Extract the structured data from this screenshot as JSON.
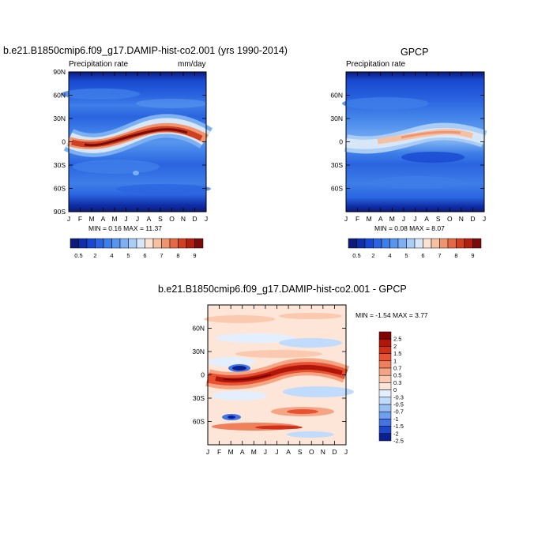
{
  "panel1": {
    "title": "b.e21.B1850cmip6.f09_g17.DAMIP-hist-co2.001 (yrs 1990-2014)",
    "left_label": "Precipitation rate",
    "right_label": "mm/day",
    "minmax": "MIN =   0.16 MAX =   11.37"
  },
  "panel2": {
    "title": "GPCP",
    "left_label": "Precipitation rate",
    "minmax": "MIN =   0.08 MAX =   8.07"
  },
  "panel3": {
    "title": "b.e21.B1850cmip6.f09_g17.DAMIP-hist-co2.001 - GPCP",
    "minmax": "MIN =  -1.54 MAX =    3.77"
  },
  "chart_data": [
    {
      "type": "heatmap",
      "title": "b.e21.B1850cmip6.f09_g17.DAMIP-hist-co2.001 (yrs 1990-2014)",
      "field": "Precipitation rate",
      "units": "mm/day",
      "x_ticks": [
        "J",
        "F",
        "M",
        "A",
        "M",
        "J",
        "J",
        "A",
        "S",
        "O",
        "N",
        "D",
        "J"
      ],
      "y_ticks": [
        "90N",
        "60N",
        "30N",
        "0",
        "30S",
        "60S",
        "90S"
      ],
      "min": 0.16,
      "max": 11.37,
      "colorbar_labels": [
        "0.5",
        "2",
        "4",
        "5",
        "6",
        "7",
        "8",
        "9"
      ],
      "itcz_peak_by_month": [
        {
          "x": "J",
          "lat": -5,
          "value": 10
        },
        {
          "x": "M",
          "lat": -4,
          "value": 11
        },
        {
          "x": "J",
          "lat": 7,
          "value": 10
        },
        {
          "x": "A",
          "lat": 9,
          "value": 11.37
        },
        {
          "x": "D",
          "lat": -3,
          "value": 9
        }
      ]
    },
    {
      "type": "heatmap",
      "title": "GPCP",
      "field": "Precipitation rate",
      "x_ticks": [
        "J",
        "F",
        "M",
        "A",
        "M",
        "J",
        "J",
        "A",
        "S",
        "O",
        "N",
        "D",
        "J"
      ],
      "y_ticks": [
        "60N",
        "30N",
        "0",
        "30S",
        "60S"
      ],
      "min": 0.08,
      "max": 8.07,
      "colorbar_labels": [
        "0.5",
        "2",
        "4",
        "5",
        "6",
        "7",
        "8",
        "9"
      ],
      "itcz_peak_by_month": [
        {
          "x": "J",
          "lat": -3,
          "value": 5
        },
        {
          "x": "A",
          "lat": 8,
          "value": 8
        },
        {
          "x": "D",
          "lat": -2,
          "value": 5
        }
      ]
    },
    {
      "type": "heatmap",
      "title": "b.e21.B1850cmip6.f09_g17.DAMIP-hist-co2.001 - GPCP",
      "x_ticks": [
        "J",
        "F",
        "M",
        "A",
        "M",
        "J",
        "J",
        "A",
        "S",
        "O",
        "N",
        "D",
        "J"
      ],
      "y_ticks": [
        "60N",
        "30N",
        "0",
        "30S",
        "60S"
      ],
      "min": -1.54,
      "max": 3.77,
      "colorbar_labels": [
        "2.5",
        "2",
        "1.5",
        "1",
        "0.7",
        "0.5",
        "0.3",
        "0",
        "-0.3",
        "-0.5",
        "-0.7",
        "-1",
        "-1.5",
        "-2",
        "-2.5"
      ]
    }
  ],
  "colors": {
    "seq": [
      "#0c1a7a",
      "#0e2fa8",
      "#1848cf",
      "#2a64e0",
      "#3e7ee8",
      "#5896ee",
      "#7cb0f2",
      "#a9cdf6",
      "#d8e7f8",
      "#fbe3d4",
      "#f6c0a2",
      "#f0956f",
      "#e46a46",
      "#cf3f22",
      "#b01f0f",
      "#7a0b06"
    ],
    "div": [
      "#800404",
      "#b0160a",
      "#d0301a",
      "#e65232",
      "#f0805c",
      "#f6a584",
      "#fbc9af",
      "#fde6d8",
      "#e3efff",
      "#c0dbfb",
      "#98c0f4",
      "#6f9ff0",
      "#4373e4",
      "#1f48c9",
      "#0b1f8f"
    ]
  }
}
